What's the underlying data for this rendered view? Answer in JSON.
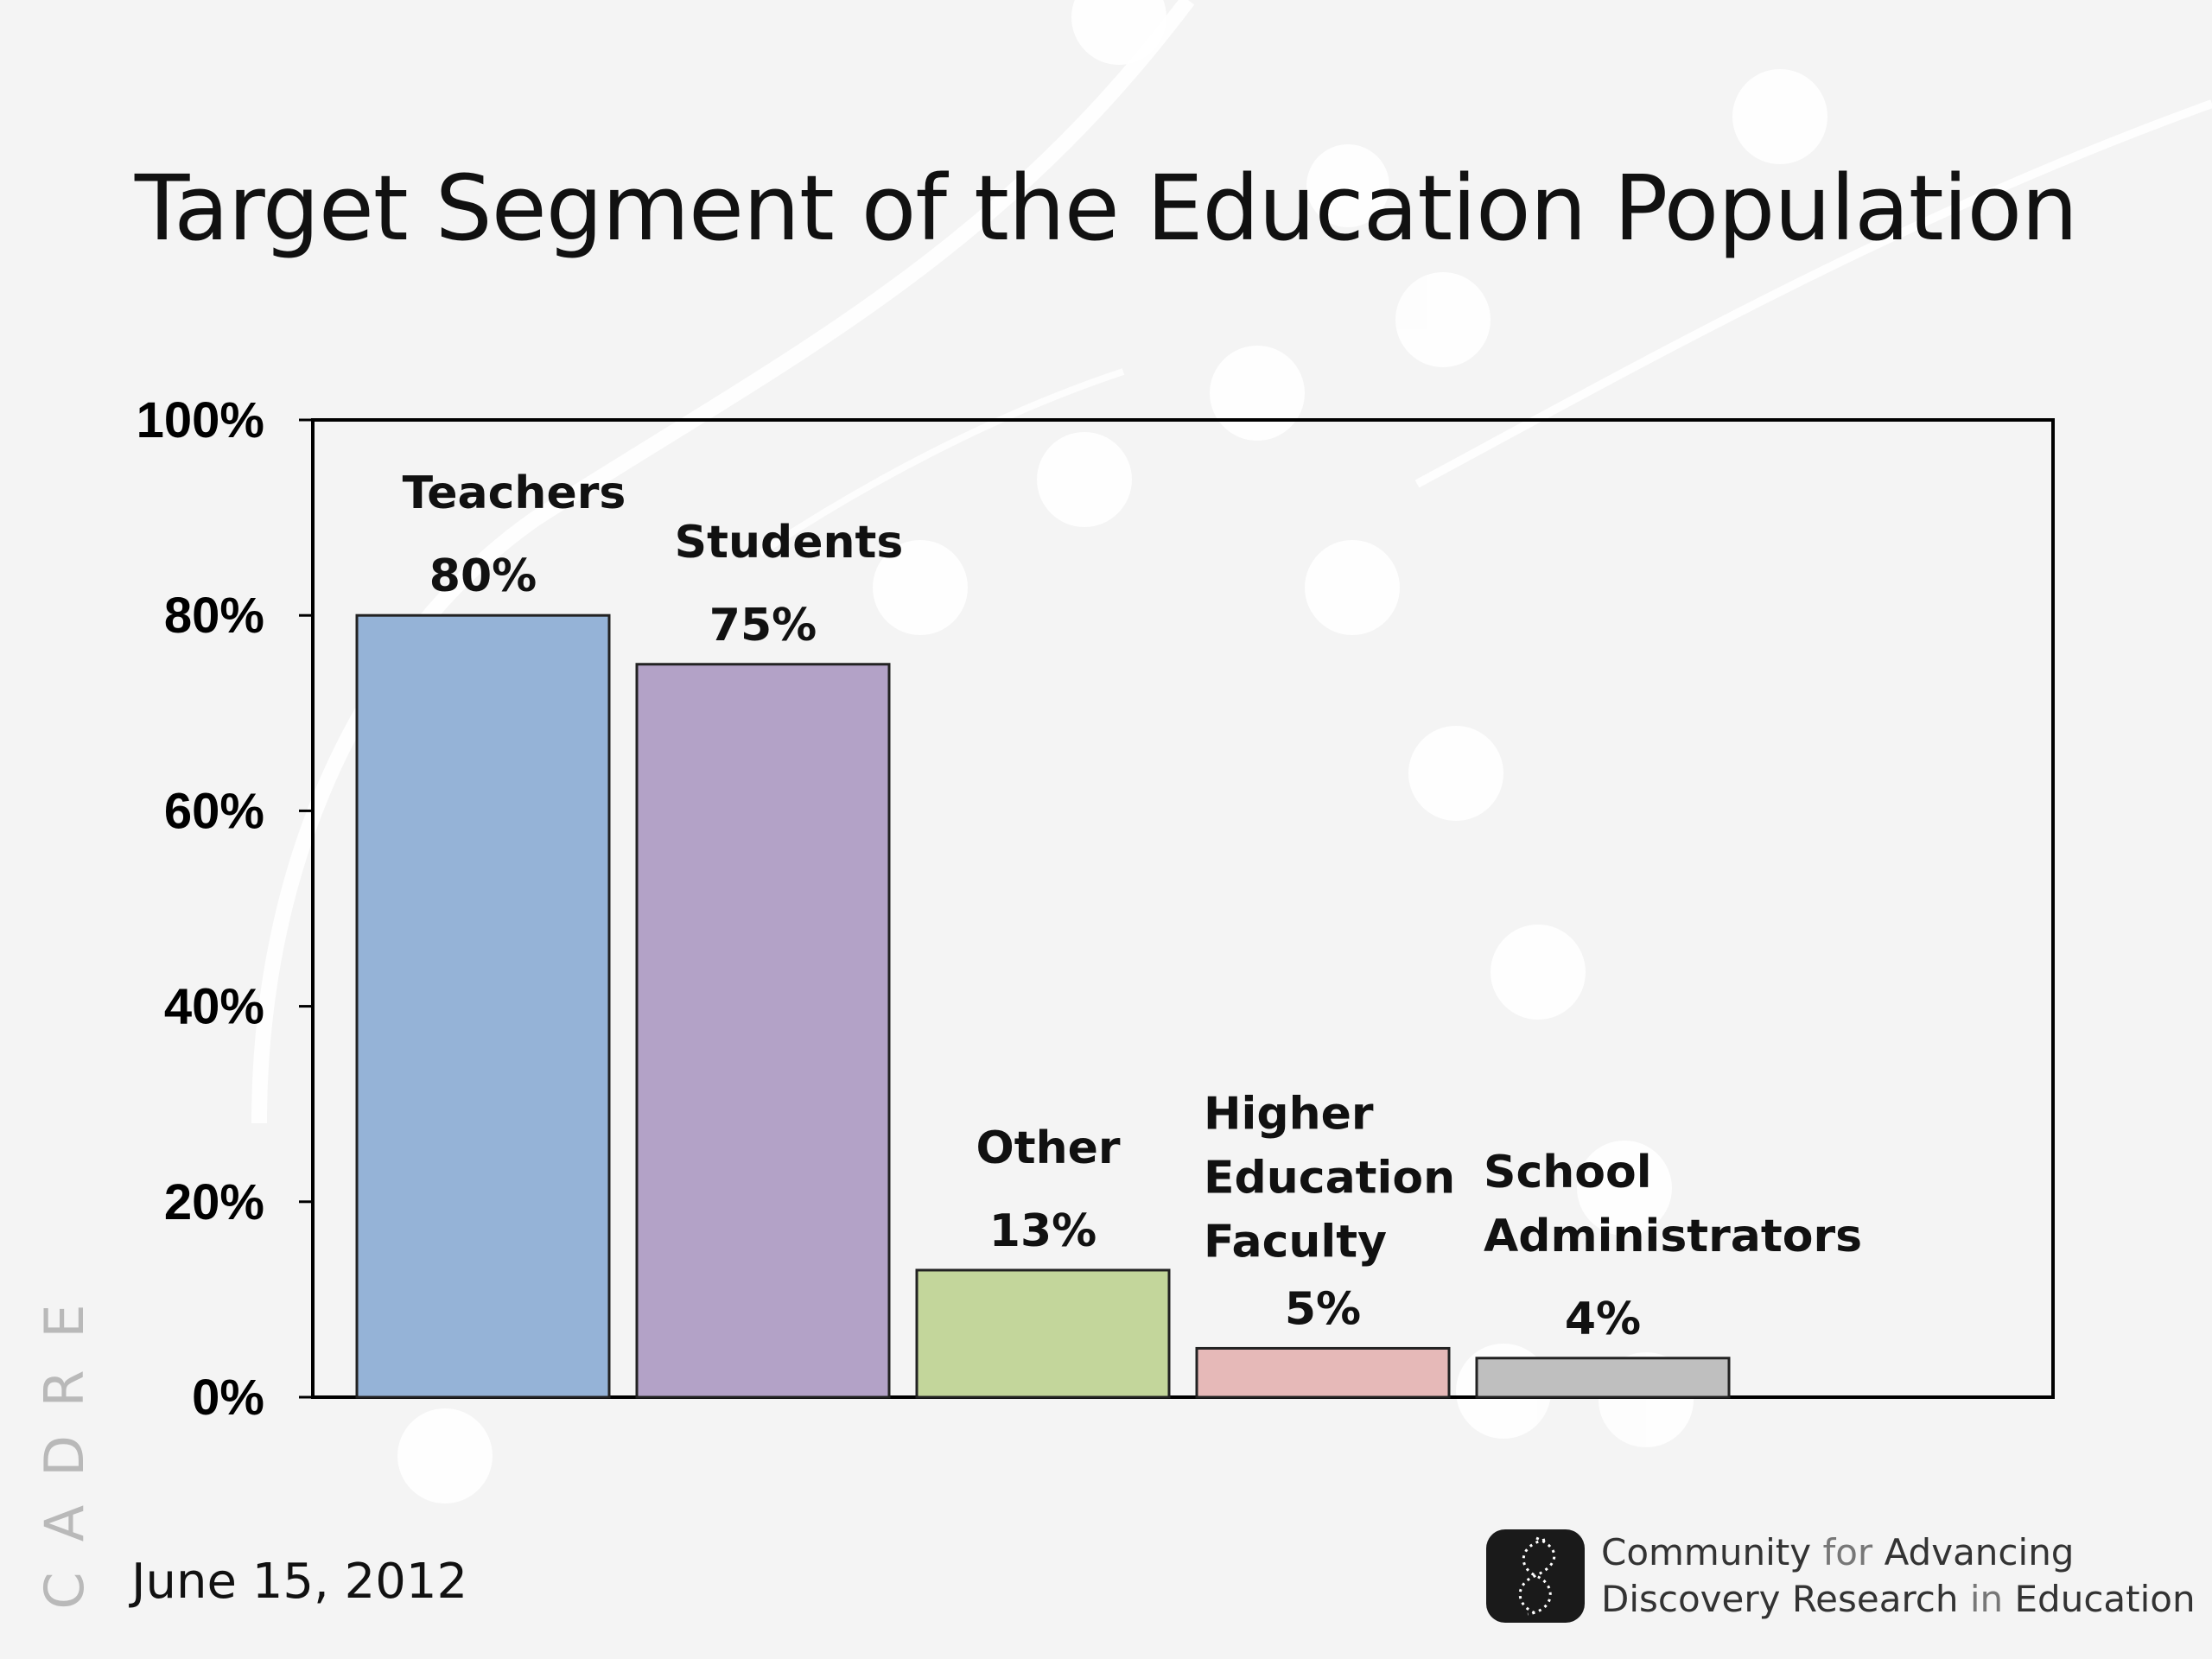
{
  "slide": {
    "title": "Target Segment of the Education Population",
    "date": "June 15, 2012",
    "watermark_letters": [
      "C",
      "A",
      "D",
      "R",
      "E"
    ],
    "footer": {
      "line1_a": "Community",
      "line1_b": "for",
      "line1_c": "Advancing",
      "line2_a": "Discovery Research",
      "line2_b": "in",
      "line2_c": "Education"
    }
  },
  "chart_data": {
    "type": "bar",
    "title": "",
    "categories": [
      [
        "Teachers"
      ],
      [
        "Students"
      ],
      [
        "Other"
      ],
      [
        "Higher",
        "Education",
        "Faculty"
      ],
      [
        "School",
        "Administrators"
      ]
    ],
    "values": [
      80,
      75,
      13,
      5,
      4
    ],
    "value_labels": [
      "80%",
      "75%",
      "13%",
      "5%",
      "4%"
    ],
    "colors": [
      "#95b3d7",
      "#b3a2c7",
      "#c3d69b",
      "#e6b9b8",
      "#bfbfbf"
    ],
    "ylim": [
      0,
      100
    ],
    "yticks": [
      0,
      20,
      40,
      60,
      80,
      100
    ],
    "ytick_labels": [
      "0%",
      "20%",
      "40%",
      "60%",
      "80%",
      "100%"
    ],
    "grid": false,
    "legend": "none"
  }
}
